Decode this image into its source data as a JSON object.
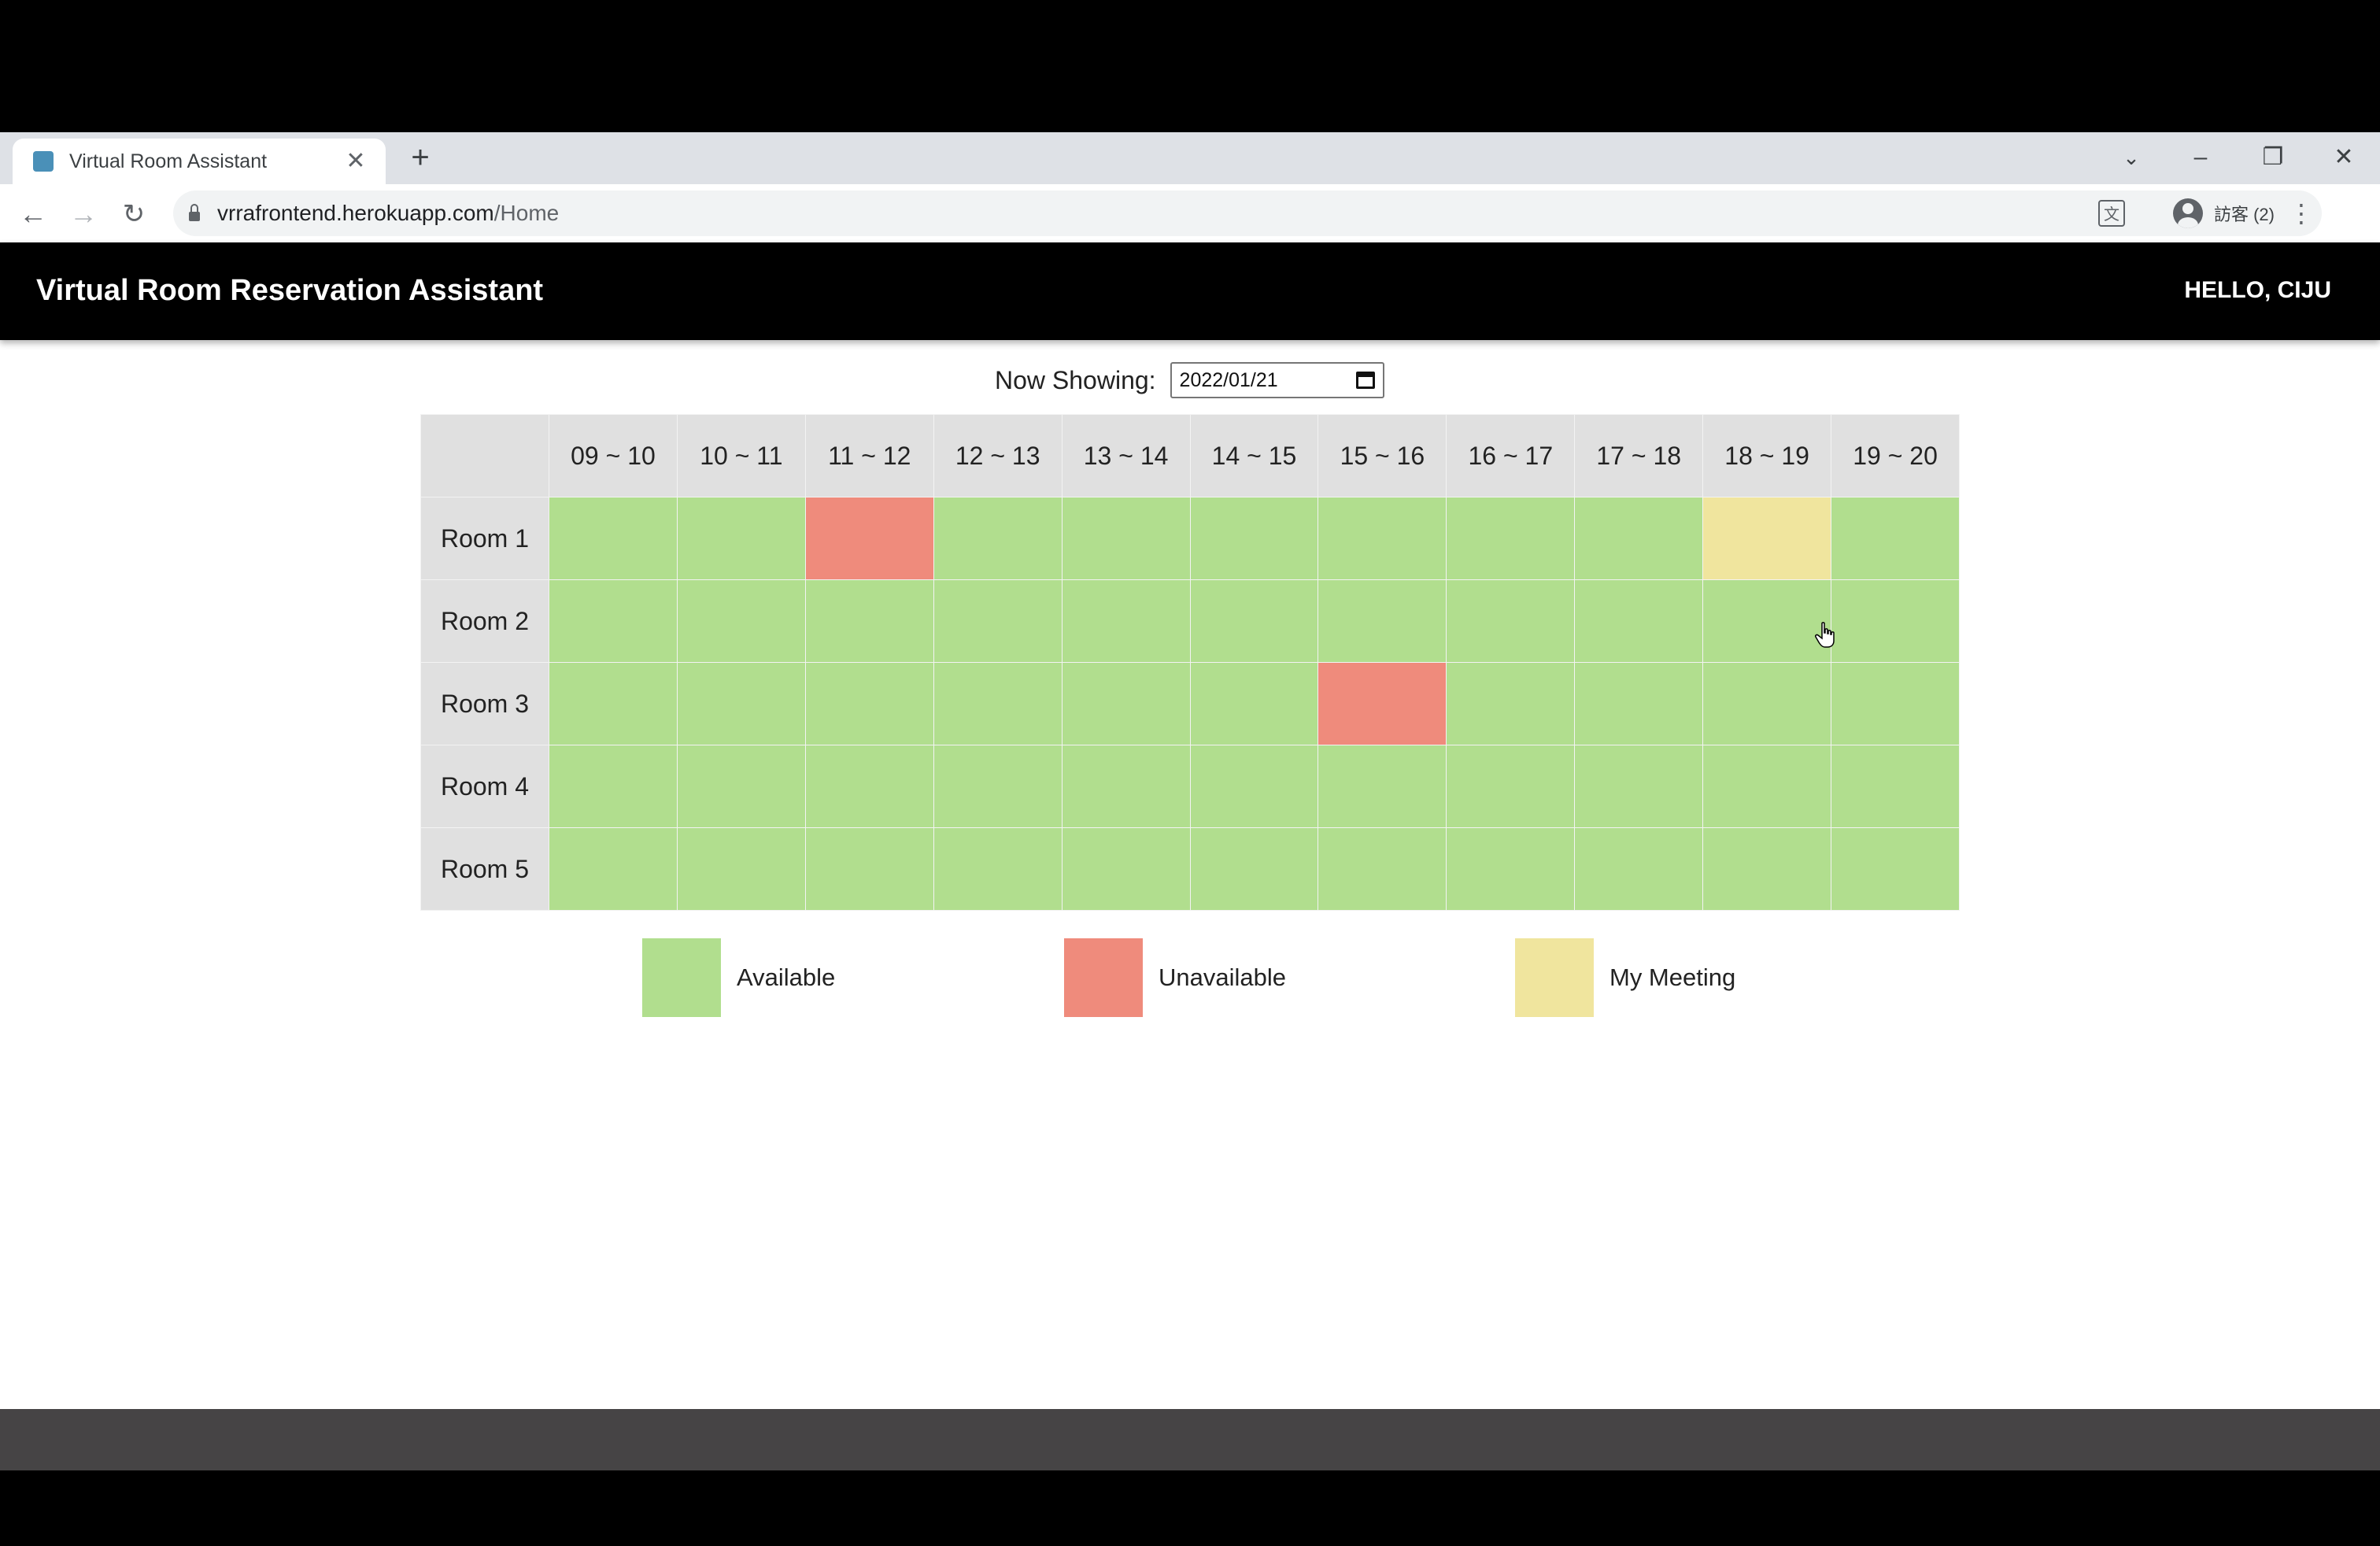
{
  "browser": {
    "tab_title": "Virtual Room Assistant",
    "close_glyph": "✕",
    "newtab_glyph": "+",
    "url_host": "vrrafrontend.herokuapp.com",
    "url_path": "/Home",
    "profile_label": "訪客 (2)"
  },
  "app": {
    "title": "Virtual Room Reservation Assistant",
    "greeting": "HELLO, CIJU"
  },
  "date_picker": {
    "label": "Now Showing:",
    "value": "2022/01/21"
  },
  "schedule": {
    "time_slots": [
      "09 ~ 10",
      "10 ~ 11",
      "11 ~ 12",
      "12 ~ 13",
      "13 ~ 14",
      "14 ~ 15",
      "15 ~ 16",
      "16 ~ 17",
      "17 ~ 18",
      "18 ~ 19",
      "19 ~ 20"
    ],
    "rooms": [
      {
        "name": "Room 1",
        "slots": [
          "available",
          "available",
          "unavailable",
          "available",
          "available",
          "available",
          "available",
          "available",
          "available",
          "mine",
          "available"
        ]
      },
      {
        "name": "Room 2",
        "slots": [
          "available",
          "available",
          "available",
          "available",
          "available",
          "available",
          "available",
          "available",
          "available",
          "available",
          "available"
        ]
      },
      {
        "name": "Room 3",
        "slots": [
          "available",
          "available",
          "available",
          "available",
          "available",
          "available",
          "unavailable",
          "available",
          "available",
          "available",
          "available"
        ]
      },
      {
        "name": "Room 4",
        "slots": [
          "available",
          "available",
          "available",
          "available",
          "available",
          "available",
          "available",
          "available",
          "available",
          "available",
          "available"
        ]
      },
      {
        "name": "Room 5",
        "slots": [
          "available",
          "available",
          "available",
          "available",
          "available",
          "available",
          "available",
          "available",
          "available",
          "available",
          "available"
        ]
      }
    ]
  },
  "legend": [
    {
      "key": "available",
      "label": "Available",
      "color": "#b1de8e"
    },
    {
      "key": "unavailable",
      "label": "Unavailable",
      "color": "#ef8b7c"
    },
    {
      "key": "mine",
      "label": "My Meeting",
      "color": "#f0e59e"
    }
  ]
}
